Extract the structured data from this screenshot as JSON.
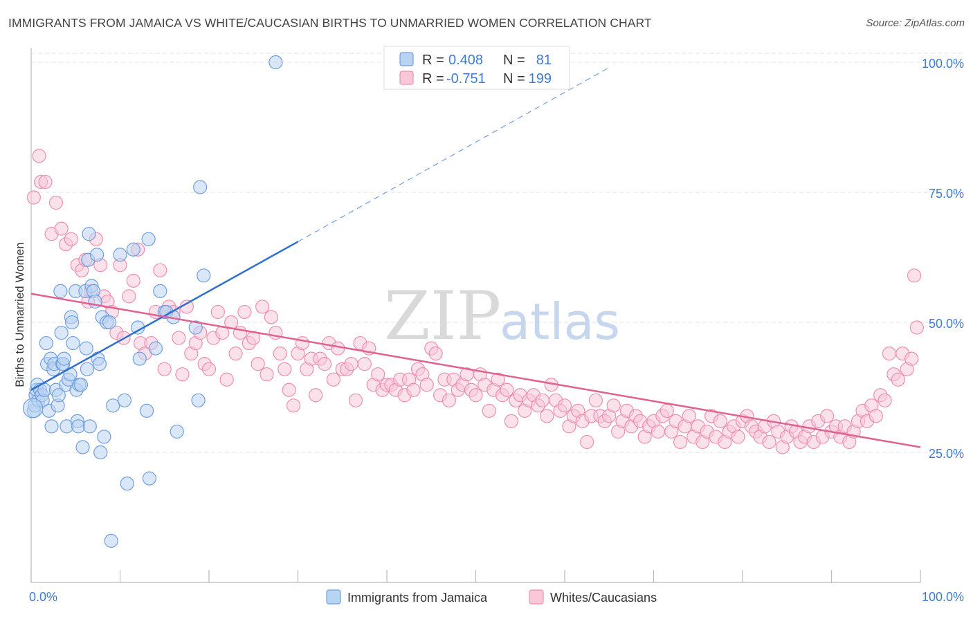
{
  "title": "IMMIGRANTS FROM JAMAICA VS WHITE/CAUCASIAN BIRTHS TO UNMARRIED WOMEN CORRELATION CHART",
  "source": "Source: ZipAtlas.com",
  "watermark": {
    "zip": "ZIP",
    "atlas": "atlas"
  },
  "legend": {
    "rows": [
      {
        "r_label": "R =",
        "r_value": "0.408",
        "n_label": "N =",
        "n_value": "81"
      },
      {
        "r_label": "R =",
        "r_value": "-0.751",
        "n_label": "N =",
        "n_value": "199"
      }
    ]
  },
  "colors": {
    "blue_fill": "#b9d3f3",
    "blue_stroke": "#6f9fe0",
    "blue_line": "#2f6fcf",
    "pink_fill": "#f8c8d8",
    "pink_stroke": "#ee8fb0",
    "pink_line": "#e0628f",
    "grid": "#e3e3e3",
    "tick_text": "#3f7bd6"
  },
  "chart_data": {
    "type": "scatter",
    "title": "IMMIGRANTS FROM JAMAICA VS WHITE/CAUCASIAN BIRTHS TO UNMARRIED WOMEN CORRELATION CHART",
    "xlabel": "",
    "ylabel": "Births to Unmarried Women",
    "xlim": [
      0,
      100
    ],
    "ylim": [
      0,
      103
    ],
    "x_tick_labels": [
      "0.0%",
      "100.0%"
    ],
    "y_ticks": [
      25,
      50,
      75,
      100
    ],
    "y_tick_labels": [
      "25.0%",
      "50.0%",
      "75.0%",
      "100.0%"
    ],
    "grid": true,
    "legend_position": "top-center",
    "series": [
      {
        "name": "Immigrants from Jamaica",
        "color": "#b9d3f3",
        "R": 0.408,
        "N": 81,
        "trend": {
          "x": [
            0,
            30
          ],
          "y": [
            37.0,
            65.5
          ],
          "dashed_to": [
            65,
            99
          ]
        },
        "points": [
          [
            0.3,
            33
          ],
          [
            0.4,
            34
          ],
          [
            0.5,
            36
          ],
          [
            0.6,
            37
          ],
          [
            0.7,
            38
          ],
          [
            0.8,
            35
          ],
          [
            1.0,
            37
          ],
          [
            1.2,
            36
          ],
          [
            1.3,
            35
          ],
          [
            1.5,
            37
          ],
          [
            1.7,
            46
          ],
          [
            1.8,
            42
          ],
          [
            2.0,
            33
          ],
          [
            2.2,
            43
          ],
          [
            2.3,
            30
          ],
          [
            2.5,
            41
          ],
          [
            2.6,
            42
          ],
          [
            2.8,
            37
          ],
          [
            3.0,
            34
          ],
          [
            3.1,
            36
          ],
          [
            3.3,
            56
          ],
          [
            3.4,
            48
          ],
          [
            3.5,
            42
          ],
          [
            3.6,
            42
          ],
          [
            3.7,
            43
          ],
          [
            3.9,
            38
          ],
          [
            4.0,
            30
          ],
          [
            4.2,
            39
          ],
          [
            4.4,
            40
          ],
          [
            4.5,
            51
          ],
          [
            4.6,
            50
          ],
          [
            4.7,
            46
          ],
          [
            5.0,
            56
          ],
          [
            5.1,
            37
          ],
          [
            5.2,
            31
          ],
          [
            5.3,
            30
          ],
          [
            5.4,
            38
          ],
          [
            5.6,
            38
          ],
          [
            5.8,
            26
          ],
          [
            6.1,
            56
          ],
          [
            6.2,
            45
          ],
          [
            6.3,
            41
          ],
          [
            6.4,
            62
          ],
          [
            6.5,
            67
          ],
          [
            6.6,
            30
          ],
          [
            6.8,
            57
          ],
          [
            7.0,
            56
          ],
          [
            7.2,
            54
          ],
          [
            7.4,
            63
          ],
          [
            7.5,
            43
          ],
          [
            7.7,
            42
          ],
          [
            7.8,
            25
          ],
          [
            8.0,
            51
          ],
          [
            8.2,
            28
          ],
          [
            8.5,
            50
          ],
          [
            8.8,
            50
          ],
          [
            9.0,
            8
          ],
          [
            9.2,
            34
          ],
          [
            10.0,
            63
          ],
          [
            10.5,
            35
          ],
          [
            10.8,
            19
          ],
          [
            11.5,
            64
          ],
          [
            12.0,
            49
          ],
          [
            12.2,
            43
          ],
          [
            13.0,
            33
          ],
          [
            13.2,
            66
          ],
          [
            13.3,
            20
          ],
          [
            14.0,
            45
          ],
          [
            14.5,
            56
          ],
          [
            15.0,
            52
          ],
          [
            15.2,
            52
          ],
          [
            16.0,
            51
          ],
          [
            16.4,
            29
          ],
          [
            18.5,
            49
          ],
          [
            18.8,
            35
          ],
          [
            19.0,
            76
          ],
          [
            19.4,
            59
          ],
          [
            27.5,
            100
          ]
        ]
      },
      {
        "name": "Whites/Caucasians",
        "color": "#f8c8d8",
        "R": -0.751,
        "N": 199,
        "trend": {
          "x": [
            0,
            100
          ],
          "y": [
            55.5,
            26.0
          ]
        },
        "points": [
          [
            0.3,
            74
          ],
          [
            0.9,
            82
          ],
          [
            1.1,
            77
          ],
          [
            1.6,
            77
          ],
          [
            2.3,
            67
          ],
          [
            2.8,
            73
          ],
          [
            3.4,
            68
          ],
          [
            3.9,
            65
          ],
          [
            4.5,
            66
          ],
          [
            5.2,
            61
          ],
          [
            5.7,
            60
          ],
          [
            6.1,
            62
          ],
          [
            6.4,
            54
          ],
          [
            6.7,
            56
          ],
          [
            7.3,
            66
          ],
          [
            7.8,
            61
          ],
          [
            8.2,
            55
          ],
          [
            8.6,
            54
          ],
          [
            9.1,
            52
          ],
          [
            9.6,
            48
          ],
          [
            10.0,
            61
          ],
          [
            10.4,
            47
          ],
          [
            11.0,
            55
          ],
          [
            11.5,
            58
          ],
          [
            12.0,
            64
          ],
          [
            12.3,
            46
          ],
          [
            12.8,
            44
          ],
          [
            13.5,
            46
          ],
          [
            14.0,
            52
          ],
          [
            14.5,
            60
          ],
          [
            15.0,
            41
          ],
          [
            15.5,
            53
          ],
          [
            16.0,
            52
          ],
          [
            16.6,
            47
          ],
          [
            17.0,
            40
          ],
          [
            17.5,
            53
          ],
          [
            18.0,
            44
          ],
          [
            18.5,
            46
          ],
          [
            19.0,
            48
          ],
          [
            19.5,
            42
          ],
          [
            20.0,
            41
          ],
          [
            20.5,
            47
          ],
          [
            21.0,
            52
          ],
          [
            21.5,
            48
          ],
          [
            22.0,
            39
          ],
          [
            22.5,
            50
          ],
          [
            23.0,
            44
          ],
          [
            23.5,
            48
          ],
          [
            24.0,
            52
          ],
          [
            24.5,
            46
          ],
          [
            25.0,
            47
          ],
          [
            25.5,
            42
          ],
          [
            26.0,
            53
          ],
          [
            26.5,
            40
          ],
          [
            27.0,
            51
          ],
          [
            27.5,
            48
          ],
          [
            28.0,
            44
          ],
          [
            28.5,
            41
          ],
          [
            29.0,
            37
          ],
          [
            29.5,
            34
          ],
          [
            30.0,
            44
          ],
          [
            30.5,
            46
          ],
          [
            31.0,
            41
          ],
          [
            31.5,
            43
          ],
          [
            32.0,
            36
          ],
          [
            32.5,
            43
          ],
          [
            33.0,
            42
          ],
          [
            33.5,
            46
          ],
          [
            34.0,
            39
          ],
          [
            34.5,
            45
          ],
          [
            35.0,
            41
          ],
          [
            35.5,
            41
          ],
          [
            36.0,
            42
          ],
          [
            36.5,
            35
          ],
          [
            37.0,
            46
          ],
          [
            37.5,
            42
          ],
          [
            38.0,
            45
          ],
          [
            38.5,
            38
          ],
          [
            39.0,
            40
          ],
          [
            39.5,
            37
          ],
          [
            40.0,
            38
          ],
          [
            40.5,
            38
          ],
          [
            41.0,
            37
          ],
          [
            41.5,
            39
          ],
          [
            42.0,
            36
          ],
          [
            42.5,
            39
          ],
          [
            43.0,
            37
          ],
          [
            43.5,
            41
          ],
          [
            44.0,
            40
          ],
          [
            44.5,
            38
          ],
          [
            45.0,
            45
          ],
          [
            45.5,
            44
          ],
          [
            46.0,
            36
          ],
          [
            46.5,
            39
          ],
          [
            47.0,
            35
          ],
          [
            47.5,
            39
          ],
          [
            48.0,
            37
          ],
          [
            48.5,
            38
          ],
          [
            49.0,
            40
          ],
          [
            49.5,
            37
          ],
          [
            50.0,
            36
          ],
          [
            50.5,
            40
          ],
          [
            51.0,
            38
          ],
          [
            51.5,
            33
          ],
          [
            52.0,
            37
          ],
          [
            52.5,
            39
          ],
          [
            53.0,
            36
          ],
          [
            53.5,
            37
          ],
          [
            54.0,
            31
          ],
          [
            54.5,
            35
          ],
          [
            55.0,
            36
          ],
          [
            55.5,
            33
          ],
          [
            56.0,
            35
          ],
          [
            56.5,
            36
          ],
          [
            57.0,
            34
          ],
          [
            57.5,
            35
          ],
          [
            58.0,
            32
          ],
          [
            58.5,
            38
          ],
          [
            59.0,
            35
          ],
          [
            59.5,
            33
          ],
          [
            60.0,
            34
          ],
          [
            60.5,
            30
          ],
          [
            61.0,
            32
          ],
          [
            61.5,
            33
          ],
          [
            62.0,
            31
          ],
          [
            62.5,
            27
          ],
          [
            63.0,
            32
          ],
          [
            63.5,
            35
          ],
          [
            64.0,
            32
          ],
          [
            64.5,
            31
          ],
          [
            65.0,
            32
          ],
          [
            65.5,
            34
          ],
          [
            66.0,
            29
          ],
          [
            66.5,
            31
          ],
          [
            67.0,
            33
          ],
          [
            67.5,
            30
          ],
          [
            68.0,
            32
          ],
          [
            68.5,
            31
          ],
          [
            69.0,
            28
          ],
          [
            69.5,
            30
          ],
          [
            70.0,
            31
          ],
          [
            70.5,
            29
          ],
          [
            71.0,
            32
          ],
          [
            71.5,
            33
          ],
          [
            72.0,
            29
          ],
          [
            72.5,
            31
          ],
          [
            73.0,
            27
          ],
          [
            73.5,
            30
          ],
          [
            74.0,
            32
          ],
          [
            74.5,
            28
          ],
          [
            75.0,
            30
          ],
          [
            75.5,
            27
          ],
          [
            76.0,
            29
          ],
          [
            76.5,
            32
          ],
          [
            77.0,
            28
          ],
          [
            77.5,
            31
          ],
          [
            78.0,
            27
          ],
          [
            78.5,
            29
          ],
          [
            79.0,
            30
          ],
          [
            79.5,
            28
          ],
          [
            80.0,
            31
          ],
          [
            80.5,
            32
          ],
          [
            81.0,
            30
          ],
          [
            81.5,
            29
          ],
          [
            82.0,
            28
          ],
          [
            82.5,
            30
          ],
          [
            83.0,
            27
          ],
          [
            83.5,
            31
          ],
          [
            84.0,
            29
          ],
          [
            84.5,
            26
          ],
          [
            85.0,
            28
          ],
          [
            85.5,
            30
          ],
          [
            86.0,
            29
          ],
          [
            86.5,
            27
          ],
          [
            87.0,
            28
          ],
          [
            87.5,
            30
          ],
          [
            88.0,
            27
          ],
          [
            88.5,
            31
          ],
          [
            89.0,
            28
          ],
          [
            89.5,
            32
          ],
          [
            90.0,
            29
          ],
          [
            90.5,
            30
          ],
          [
            91.0,
            28
          ],
          [
            91.5,
            30
          ],
          [
            92.0,
            27
          ],
          [
            92.5,
            29
          ],
          [
            93.0,
            31
          ],
          [
            93.5,
            33
          ],
          [
            94.0,
            31
          ],
          [
            94.5,
            34
          ],
          [
            95.0,
            32
          ],
          [
            95.5,
            36
          ],
          [
            96.0,
            35
          ],
          [
            96.5,
            44
          ],
          [
            97.0,
            40
          ],
          [
            97.5,
            39
          ],
          [
            98.0,
            44
          ],
          [
            98.5,
            41
          ],
          [
            99.0,
            43
          ],
          [
            99.3,
            59
          ],
          [
            99.6,
            49
          ]
        ]
      }
    ]
  }
}
